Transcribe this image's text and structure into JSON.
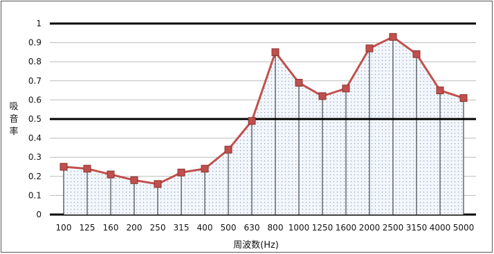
{
  "chart_data": {
    "type": "area",
    "title": "",
    "xlabel": "周波数(Hz)",
    "ylabel": "吸音率",
    "categories": [
      "100",
      "125",
      "160",
      "200",
      "250",
      "315",
      "400",
      "500",
      "630",
      "800",
      "1000",
      "1250",
      "1600",
      "2000",
      "2500",
      "3150",
      "4000",
      "5000"
    ],
    "series": [
      {
        "values": [
          0.25,
          0.24,
          0.21,
          0.18,
          0.16,
          0.22,
          0.24,
          0.34,
          0.49,
          0.85,
          0.69,
          0.62,
          0.66,
          0.87,
          0.93,
          0.84,
          0.65,
          0.61
        ]
      }
    ],
    "ylim": [
      0,
      1
    ],
    "yticks": [
      "0",
      "0.1",
      "0.2",
      "0.3",
      "0.4",
      "0.5",
      "0.6",
      "0.7",
      "0.8",
      "0.9",
      "1"
    ],
    "grid": true,
    "reference_line": 0.5,
    "colors": {
      "line": "#c0504d",
      "marker": "#c0504d",
      "fill": "#eef3fa",
      "dots": "#8aa3bf"
    }
  }
}
